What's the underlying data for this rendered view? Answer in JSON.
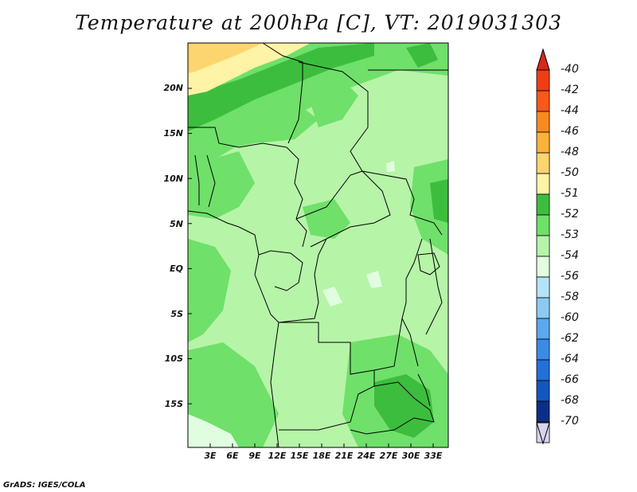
{
  "title": "Temperature at 200hPa [C], VT: 2019031303",
  "credit": "GrADS: IGES/COLA",
  "lat_ticks": [
    "20N",
    "15N",
    "10N",
    "5N",
    "EQ",
    "5S",
    "10S",
    "15S"
  ],
  "lon_ticks": [
    "3E",
    "6E",
    "9E",
    "12E",
    "15E",
    "18E",
    "21E",
    "24E",
    "27E",
    "30E",
    "33E"
  ],
  "legend": {
    "labels": [
      "-40",
      "-42",
      "-44",
      "-46",
      "-48",
      "-50",
      "-51",
      "-52",
      "-53",
      "-54",
      "-56",
      "-58",
      "-60",
      "-62",
      "-64",
      "-66",
      "-68",
      "-70"
    ],
    "colors": [
      "#f03d16",
      "#f7581b",
      "#f88b1f",
      "#fbb23a",
      "#fdd56f",
      "#fff3a6",
      "#3dbd3d",
      "#6fe06a",
      "#b6f4a8",
      "#e0fde0",
      "#b4e3f7",
      "#8ccaf2",
      "#5ca8ed",
      "#3a8be6",
      "#2470d8",
      "#1456c0",
      "#0b2f86",
      "#d9d3ee"
    ],
    "arrow_top_color": "#d6291a",
    "arrow_bottom_color": "#d9d3ee"
  },
  "field_colors": {
    "base": "#b6f4a8",
    "warm": "#6fe06a",
    "warmer": "#3dbd3d",
    "pale_yellow": "#fff3a6",
    "yellow": "#fdd56f",
    "cold": "#e0fde0",
    "border": "#000000"
  }
}
